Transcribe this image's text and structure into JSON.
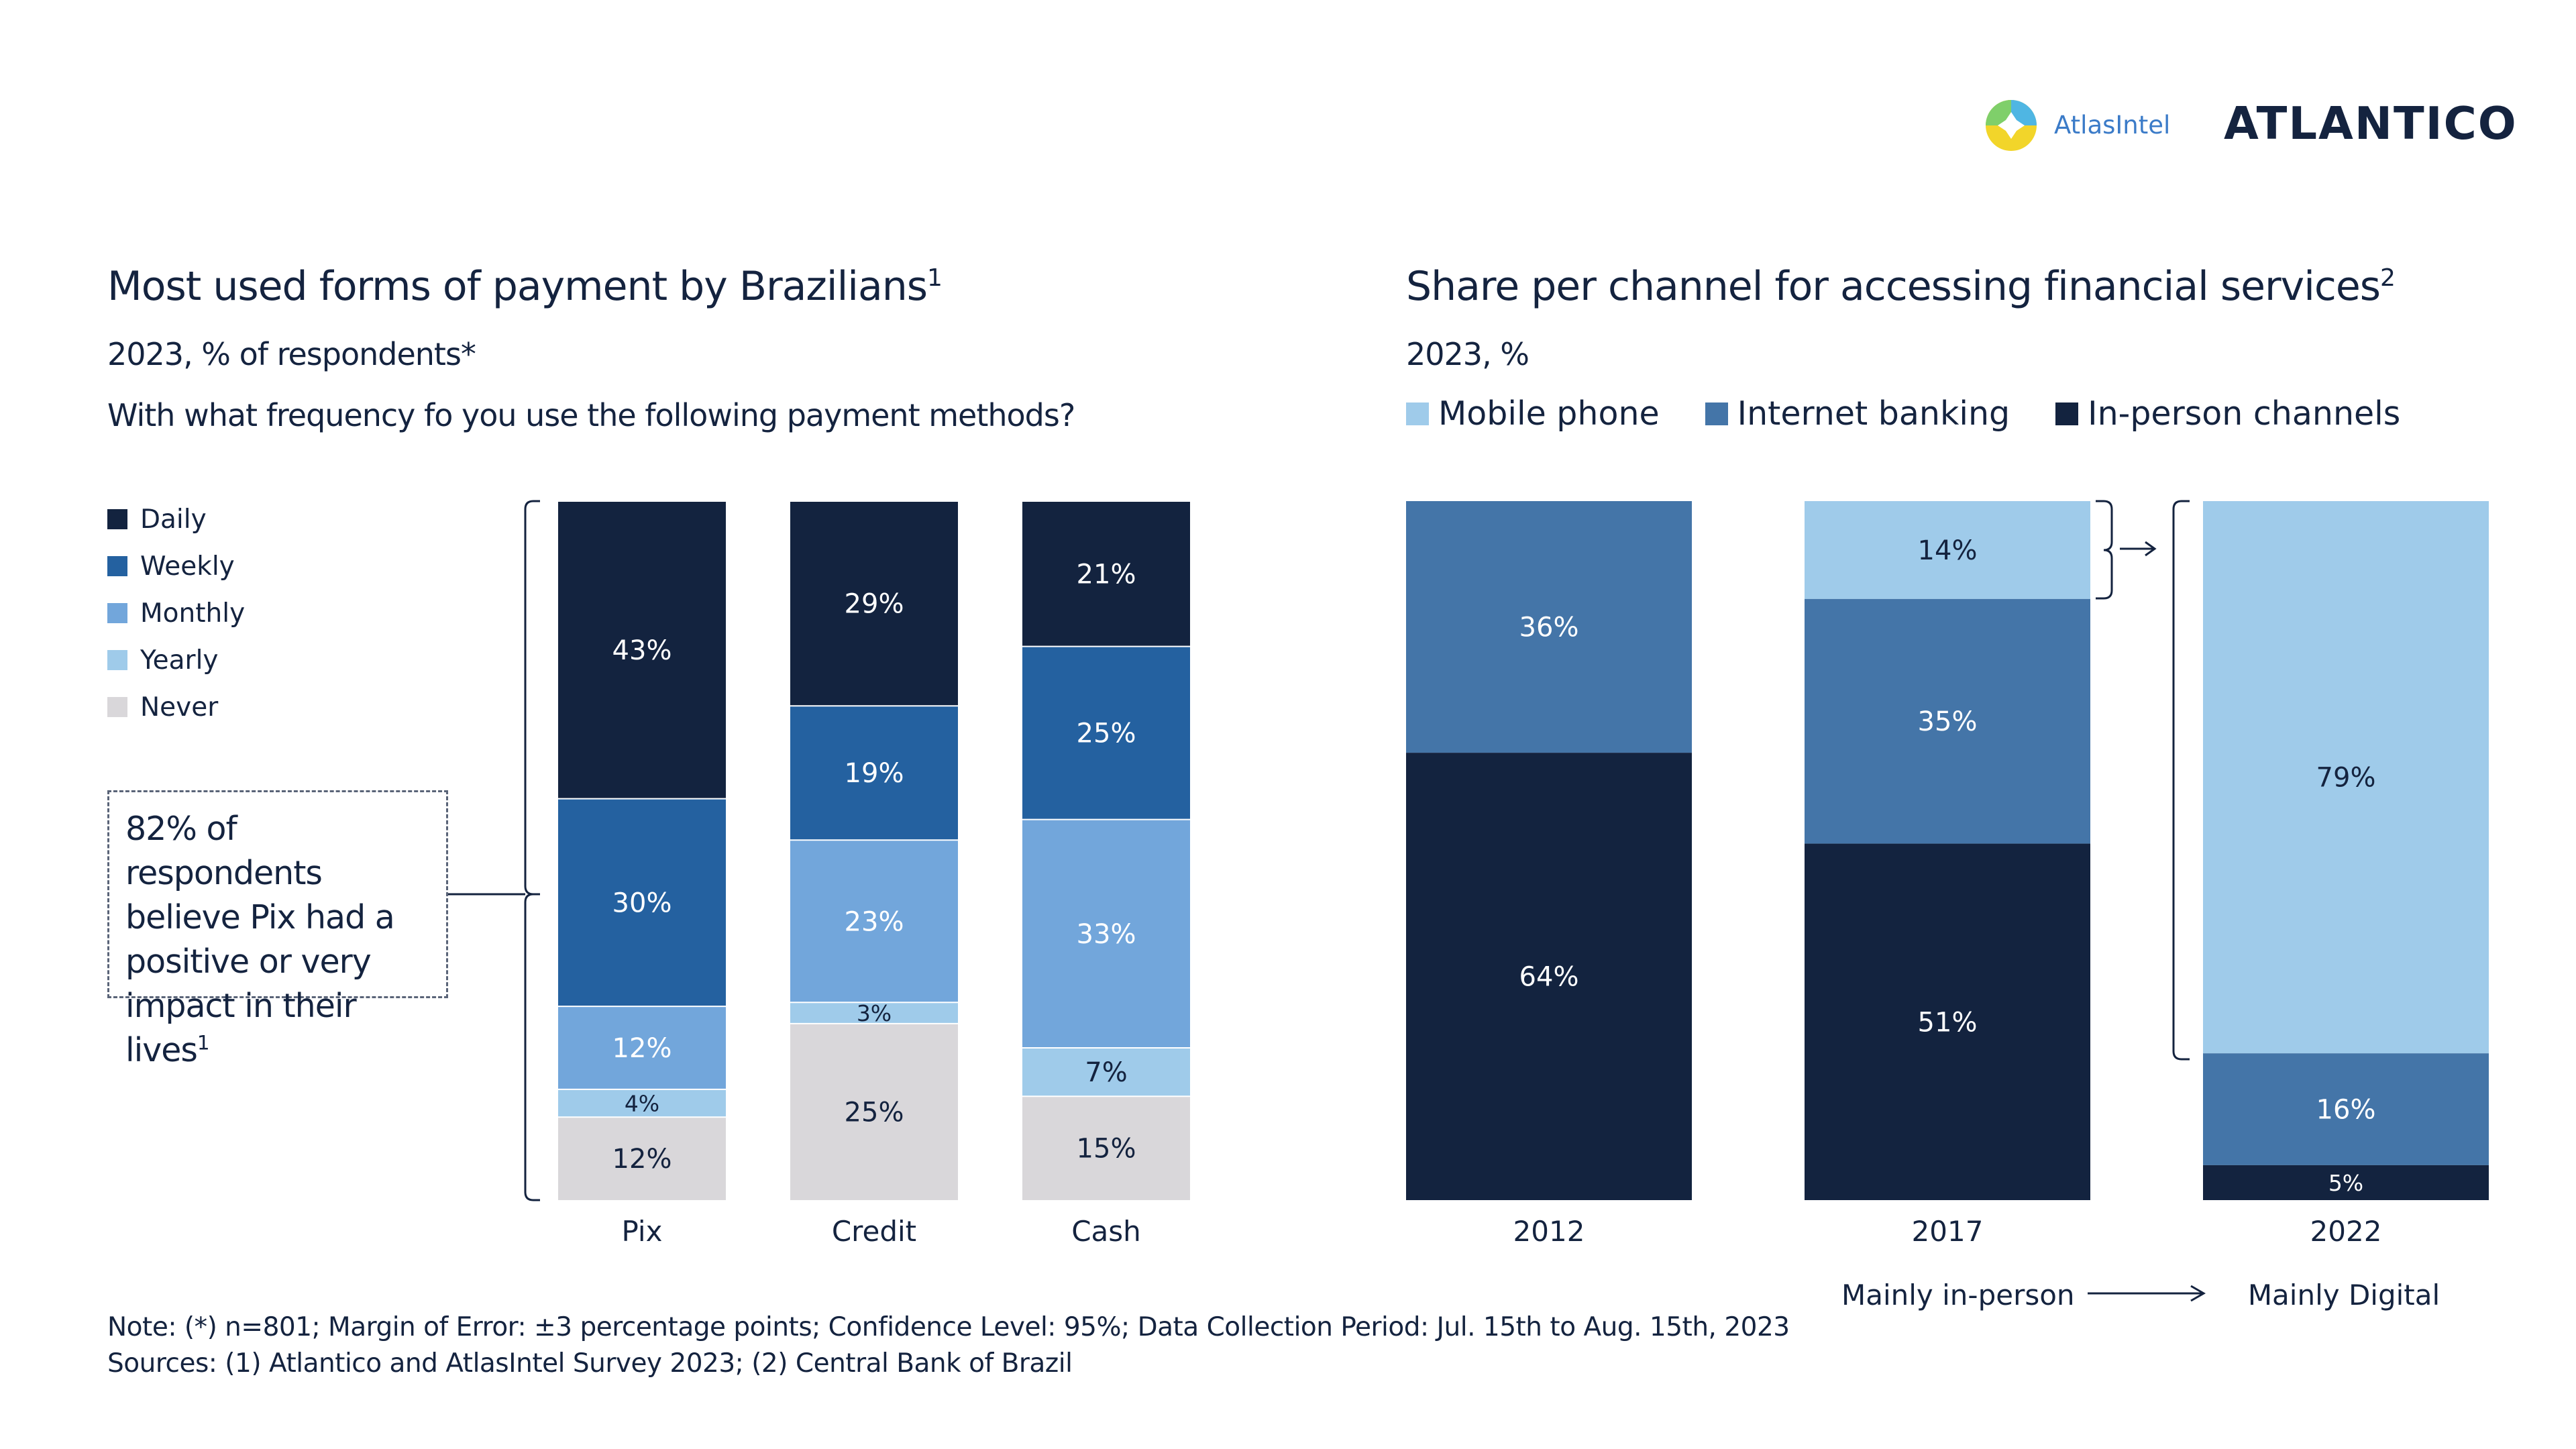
{
  "logos": {
    "atlas": "AtlasIntel",
    "atlantico": "ATLANTICO"
  },
  "colors": {
    "navy": "#13233f",
    "blue_dark": "#2461a0",
    "blue_mid": "#72a6db",
    "blue_light": "#9fcbea",
    "gray": "#d9d7da",
    "channel_internet": "#4475a8",
    "channel_mobile": "#9fcbea",
    "channel_inperson": "#13233f"
  },
  "left": {
    "title": "Most used forms of payment by Brazilians",
    "title_sup": "1",
    "subtitle": "2023, % of respondents*",
    "question": "With what frequency fo you use the following payment methods?",
    "legend": [
      "Daily",
      "Weekly",
      "Monthly",
      "Yearly",
      "Never"
    ],
    "callout": "82% of respondents believe Pix had a positive or very impact in their lives",
    "callout_sup": "1"
  },
  "right": {
    "title": "Share per channel for accessing financial services",
    "title_sup": "2",
    "subtitle": "2023, %",
    "legend": [
      "Mobile phone",
      "Internet banking",
      "In-person channels"
    ],
    "from_label": "Mainly in-person",
    "to_label": "Mainly Digital"
  },
  "chart_data": [
    {
      "type": "bar",
      "stacked": true,
      "categories": [
        "Pix",
        "Credit",
        "Cash"
      ],
      "series": [
        {
          "name": "Daily",
          "values": [
            43,
            29,
            21
          ],
          "labels": [
            "43%",
            "29%",
            "21%"
          ]
        },
        {
          "name": "Weekly",
          "values": [
            30,
            19,
            25
          ],
          "labels": [
            "30%",
            "19%",
            "25%"
          ]
        },
        {
          "name": "Monthly",
          "values": [
            12,
            23,
            33
          ],
          "labels": [
            "12%",
            "23%",
            "33%"
          ]
        },
        {
          "name": "Yearly",
          "values": [
            4,
            3,
            7
          ],
          "labels": [
            "4%",
            "3%",
            "7%"
          ]
        },
        {
          "name": "Never",
          "values": [
            12,
            25,
            15
          ],
          "labels": [
            "12%",
            "25%",
            "15%"
          ]
        }
      ]
    },
    {
      "type": "bar",
      "stacked": true,
      "categories": [
        "2012",
        "2017",
        "2022"
      ],
      "series": [
        {
          "name": "Mobile phone",
          "values": [
            0,
            14,
            79
          ],
          "labels": [
            "",
            "14%",
            "79%"
          ]
        },
        {
          "name": "Internet banking",
          "values": [
            36,
            35,
            16
          ],
          "labels": [
            "36%",
            "35%",
            "16%"
          ]
        },
        {
          "name": "In-person channels",
          "values": [
            64,
            51,
            5
          ],
          "labels": [
            "64%",
            "51%",
            "5%"
          ]
        }
      ]
    }
  ],
  "footer": {
    "note": "Note: (*) n=801; Margin of Error: ±3 percentage points; Confidence Level: 95%; Data Collection Period: Jul. 15th to Aug. 15th, 2023",
    "sources": "Sources: (1) Atlantico and AtlasIntel Survey 2023; (2) Central Bank of Brazil"
  }
}
